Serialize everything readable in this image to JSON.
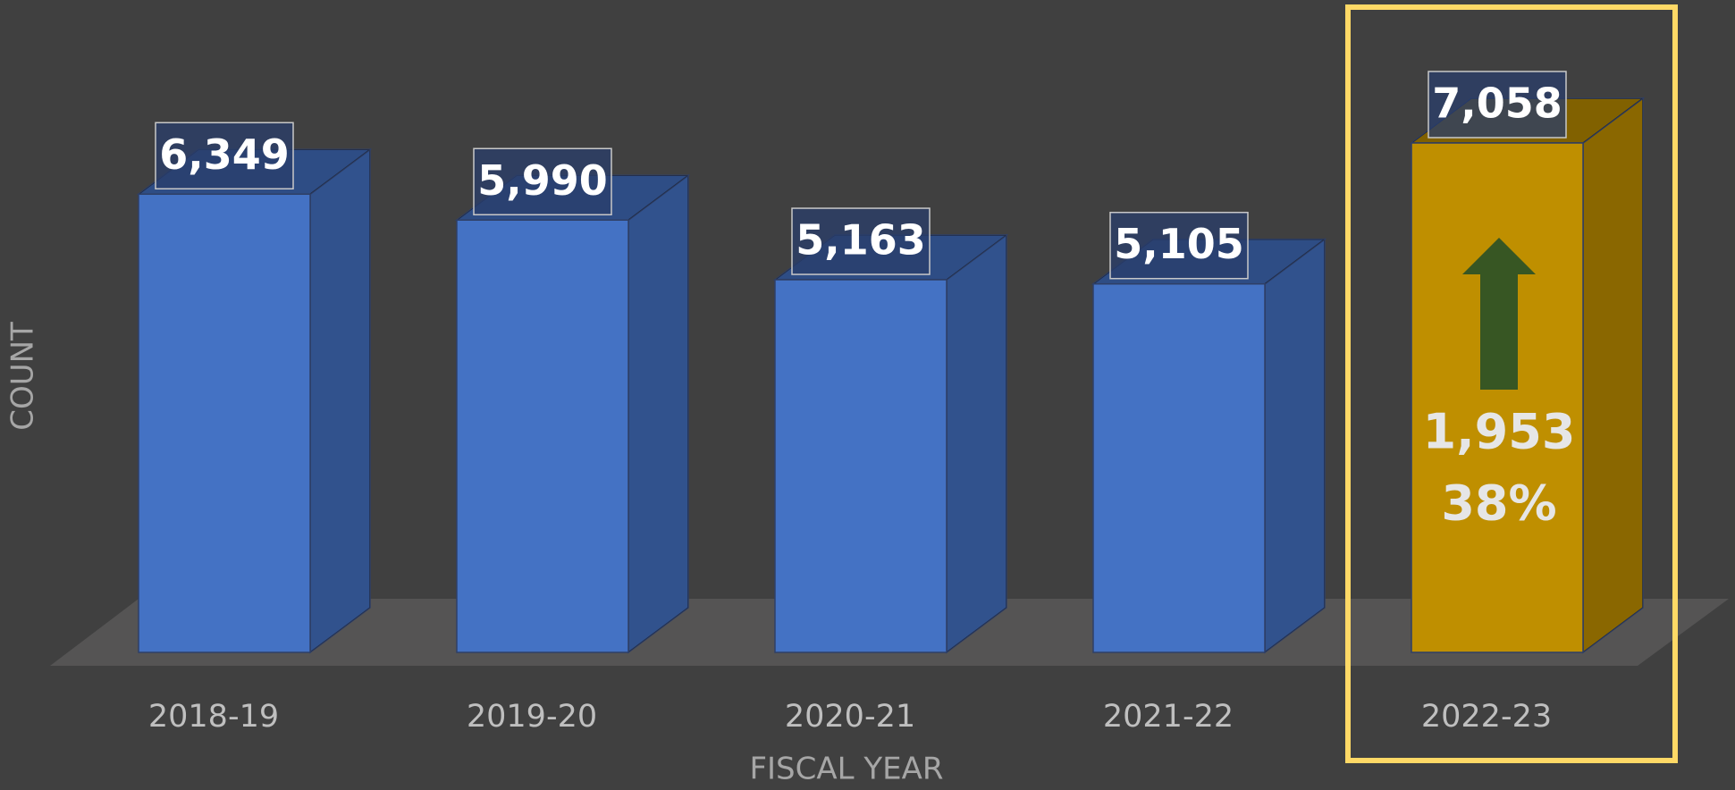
{
  "chart_data": {
    "type": "bar3d",
    "categories": [
      "2018-19",
      "2019-20",
      "2020-21",
      "2021-22",
      "2022-23"
    ],
    "values": [
      6349,
      5990,
      5163,
      5105,
      7058
    ],
    "value_labels": [
      "6,349",
      "5,990",
      "5,163",
      "5,105",
      "7,058"
    ],
    "colors": [
      "#4472c4",
      "#4472c4",
      "#4472c4",
      "#4472c4",
      "#bf8f00"
    ],
    "xlabel": "FISCAL YEAR",
    "ylabel": "COUNT",
    "annotations": [
      "1,953",
      "38%"
    ]
  }
}
